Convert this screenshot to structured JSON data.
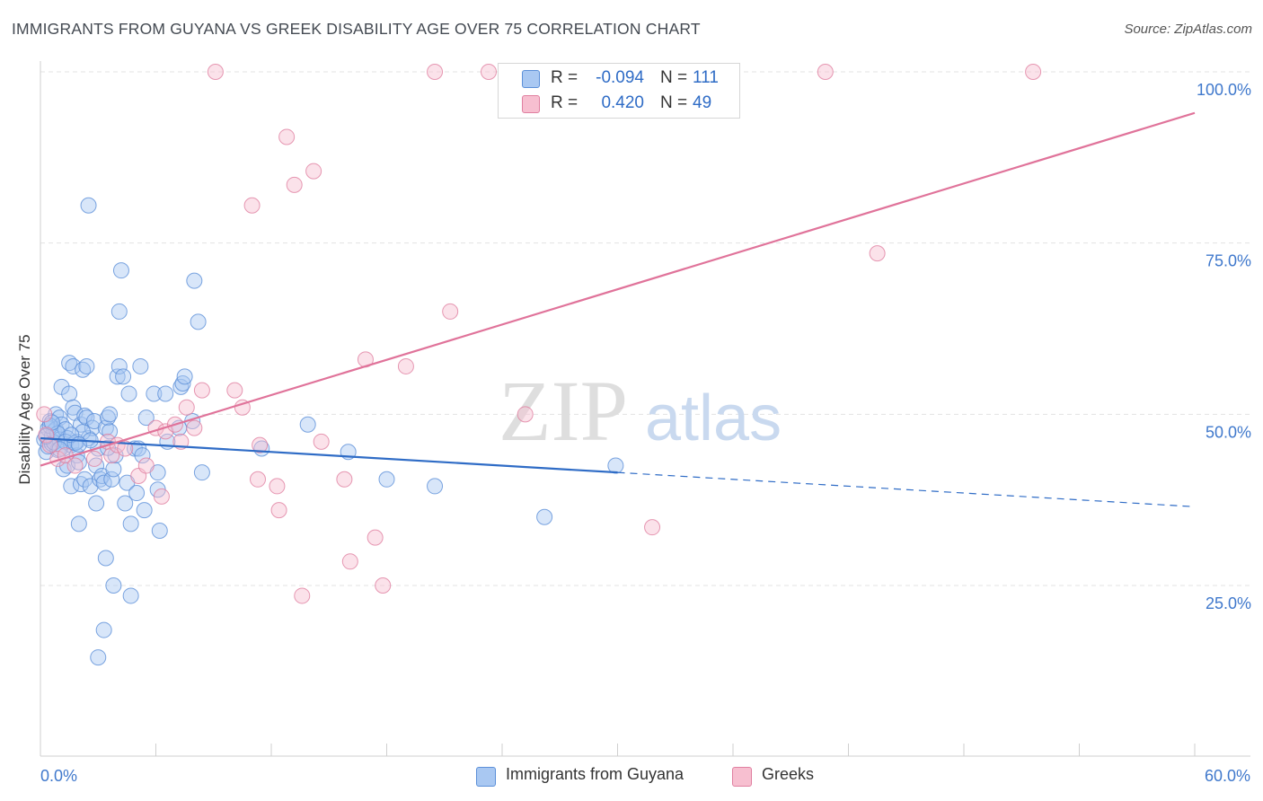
{
  "title": "IMMIGRANTS FROM GUYANA VS GREEK DISABILITY AGE OVER 75 CORRELATION CHART",
  "source": "Source: ZipAtlas.com",
  "watermark": {
    "zip": "ZIP",
    "atlas": "atlas"
  },
  "legend": {
    "r_label": "R =",
    "n_label": "N =",
    "rows": [
      {
        "r": "-0.094",
        "n": "111",
        "color": "#a9c8f2",
        "stroke": "#5b8fd8"
      },
      {
        "r": "0.420",
        "n": "49",
        "color": "#f7bfd0",
        "stroke": "#e07fa0"
      }
    ]
  },
  "bottom_legend": [
    {
      "label": "Immigrants from Guyana",
      "color": "#a9c8f2",
      "stroke": "#5b8fd8"
    },
    {
      "label": "Greeks",
      "color": "#f7bfd0",
      "stroke": "#e07fa0"
    }
  ],
  "chart_data": {
    "type": "scatter",
    "title": "IMMIGRANTS FROM GUYANA VS GREEK DISABILITY AGE OVER 75 CORRELATION CHART",
    "xlabel": "",
    "ylabel": "Disability Age Over 75",
    "xlim": [
      0,
      60
    ],
    "ylim": [
      0,
      105
    ],
    "x_tick_labels": [
      "0.0%",
      "60.0%"
    ],
    "y_ticks": [
      25,
      50,
      75,
      100
    ],
    "y_tick_labels": [
      "25.0%",
      "50.0%",
      "75.0%",
      "100.0%"
    ],
    "grid": true,
    "series": [
      {
        "name": "Immigrants from Guyana",
        "color": "#5b8fd8",
        "fill": "#a9c8f2",
        "trend": {
          "x0": 0,
          "y0": 46.5,
          "x1": 30,
          "y1": 41.5,
          "dash_to_x": 60,
          "dash_to_y": 36.5,
          "color": "#2f6cc6"
        },
        "points": [
          [
            0.2,
            46.3
          ],
          [
            0.3,
            44.5
          ],
          [
            0.4,
            47.9
          ],
          [
            0.4,
            45.3
          ],
          [
            0.5,
            49.0
          ],
          [
            0.6,
            46.8
          ],
          [
            0.6,
            45.7
          ],
          [
            0.7,
            47.5
          ],
          [
            0.8,
            50.0
          ],
          [
            0.8,
            47.8
          ],
          [
            0.9,
            44.8
          ],
          [
            1.0,
            46.3
          ],
          [
            1.0,
            49.5
          ],
          [
            1.1,
            48.5
          ],
          [
            1.1,
            54.0
          ],
          [
            1.2,
            42.0
          ],
          [
            1.2,
            45.0
          ],
          [
            1.3,
            47.8
          ],
          [
            1.4,
            42.5
          ],
          [
            1.4,
            46.5
          ],
          [
            1.5,
            53.0
          ],
          [
            1.5,
            57.5
          ],
          [
            1.6,
            39.5
          ],
          [
            1.6,
            45.5
          ],
          [
            1.7,
            51.0
          ],
          [
            1.7,
            57.0
          ],
          [
            1.8,
            50.2
          ],
          [
            1.9,
            44.0
          ],
          [
            1.9,
            46.0
          ],
          [
            2.0,
            34.0
          ],
          [
            2.0,
            43.0
          ],
          [
            2.1,
            39.8
          ],
          [
            2.1,
            48.5
          ],
          [
            2.2,
            56.5
          ],
          [
            2.3,
            49.8
          ],
          [
            2.3,
            40.5
          ],
          [
            2.4,
            49.5
          ],
          [
            2.4,
            57.0
          ],
          [
            2.5,
            46.5
          ],
          [
            2.5,
            80.5
          ],
          [
            2.6,
            39.5
          ],
          [
            2.7,
            48.0
          ],
          [
            2.8,
            49.0
          ],
          [
            2.9,
            42.5
          ],
          [
            2.9,
            37.0
          ],
          [
            3.0,
            45.0
          ],
          [
            3.0,
            14.5
          ],
          [
            3.1,
            40.5
          ],
          [
            3.2,
            41.0
          ],
          [
            3.3,
            40.0
          ],
          [
            3.3,
            18.5
          ],
          [
            3.4,
            29.0
          ],
          [
            3.4,
            48.0
          ],
          [
            3.5,
            49.5
          ],
          [
            3.6,
            47.5
          ],
          [
            3.6,
            50.0
          ],
          [
            3.7,
            40.5
          ],
          [
            3.8,
            42.0
          ],
          [
            3.8,
            25.0
          ],
          [
            3.9,
            44.0
          ],
          [
            4.0,
            55.5
          ],
          [
            4.1,
            65.0
          ],
          [
            4.1,
            57.0
          ],
          [
            4.2,
            71.0
          ],
          [
            4.3,
            55.5
          ],
          [
            4.4,
            37.0
          ],
          [
            4.5,
            40.0
          ],
          [
            4.6,
            53.0
          ],
          [
            4.7,
            34.0
          ],
          [
            4.7,
            23.5
          ],
          [
            4.9,
            45.0
          ],
          [
            5.0,
            38.5
          ],
          [
            5.1,
            45.0
          ],
          [
            5.2,
            57.0
          ],
          [
            5.3,
            44.0
          ],
          [
            5.4,
            36.0
          ],
          [
            5.5,
            49.5
          ],
          [
            5.9,
            53.0
          ],
          [
            6.1,
            39.0
          ],
          [
            6.1,
            41.5
          ],
          [
            6.2,
            33.0
          ],
          [
            6.5,
            53.0
          ],
          [
            6.6,
            46.0
          ],
          [
            7.2,
            48.0
          ],
          [
            7.3,
            54.0
          ],
          [
            7.4,
            54.5
          ],
          [
            7.5,
            55.5
          ],
          [
            7.9,
            49.0
          ],
          [
            8.0,
            69.5
          ],
          [
            8.2,
            63.5
          ],
          [
            8.4,
            41.5
          ],
          [
            11.5,
            45.0
          ],
          [
            13.9,
            48.5
          ],
          [
            16.0,
            44.5
          ],
          [
            18.0,
            40.5
          ],
          [
            20.5,
            39.5
          ],
          [
            26.2,
            35.0
          ],
          [
            29.9,
            42.5
          ],
          [
            0.5,
            48.3
          ],
          [
            0.7,
            45.9
          ],
          [
            0.9,
            47.2
          ],
          [
            1.3,
            46.0
          ],
          [
            1.8,
            45.8
          ],
          [
            2.2,
            47.4
          ],
          [
            2.6,
            46.2
          ],
          [
            3.5,
            45.1
          ],
          [
            0.3,
            46.8
          ],
          [
            1.0,
            44.9
          ],
          [
            1.6,
            47.0
          ],
          [
            2.0,
            45.6
          ],
          [
            0.6,
            48.8
          ]
        ]
      },
      {
        "name": "Greeks",
        "color": "#e07fa0",
        "fill": "#f7bfd0",
        "trend": {
          "x0": 0,
          "y0": 42.5,
          "x1": 60,
          "y1": 94.0,
          "color": "#e0739a"
        },
        "points": [
          [
            0.2,
            50.0
          ],
          [
            0.3,
            47.0
          ],
          [
            0.5,
            45.5
          ],
          [
            0.9,
            43.5
          ],
          [
            1.3,
            44.0
          ],
          [
            1.8,
            42.5
          ],
          [
            2.8,
            43.5
          ],
          [
            3.5,
            46.0
          ],
          [
            3.7,
            44.0
          ],
          [
            4.0,
            45.5
          ],
          [
            4.4,
            45.0
          ],
          [
            5.1,
            41.0
          ],
          [
            5.5,
            42.5
          ],
          [
            6.0,
            48.0
          ],
          [
            6.3,
            38.0
          ],
          [
            6.5,
            47.5
          ],
          [
            7.0,
            48.5
          ],
          [
            7.3,
            46.0
          ],
          [
            7.6,
            51.0
          ],
          [
            8.0,
            48.0
          ],
          [
            8.4,
            53.5
          ],
          [
            9.1,
            100.0
          ],
          [
            10.1,
            53.5
          ],
          [
            10.5,
            51.0
          ],
          [
            11.0,
            80.5
          ],
          [
            11.4,
            45.5
          ],
          [
            11.3,
            40.5
          ],
          [
            12.3,
            39.5
          ],
          [
            12.4,
            36.0
          ],
          [
            12.8,
            90.5
          ],
          [
            13.2,
            83.5
          ],
          [
            13.6,
            23.5
          ],
          [
            14.2,
            85.5
          ],
          [
            14.6,
            46.0
          ],
          [
            15.8,
            40.5
          ],
          [
            16.1,
            28.5
          ],
          [
            16.9,
            58.0
          ],
          [
            17.4,
            32.0
          ],
          [
            17.8,
            25.0
          ],
          [
            19.0,
            57.0
          ],
          [
            20.5,
            100.0
          ],
          [
            21.3,
            65.0
          ],
          [
            23.3,
            100.0
          ],
          [
            24.5,
            100.0
          ],
          [
            25.2,
            50.0
          ],
          [
            31.8,
            33.5
          ],
          [
            40.8,
            100.0
          ],
          [
            43.5,
            73.5
          ],
          [
            51.6,
            100.0
          ]
        ]
      }
    ]
  }
}
